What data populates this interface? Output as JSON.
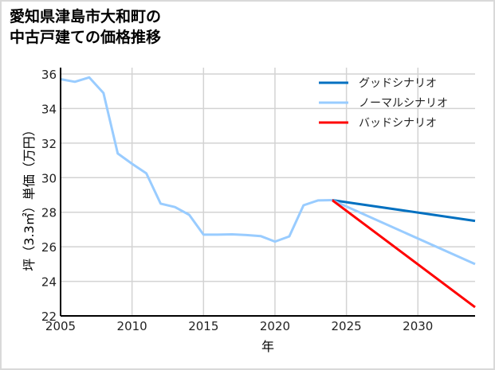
{
  "chart_data": {
    "type": "line",
    "title": [
      "愛知県津島市大和町の",
      "中古戸建ての価格推移"
    ],
    "xlabel": "年",
    "ylabel": "坪（3.3㎡）単価（万円）",
    "xlim": [
      2005,
      2034
    ],
    "ylim": [
      22,
      36
    ],
    "xticks": [
      2005,
      2010,
      2015,
      2020,
      2025,
      2030
    ],
    "yticks": [
      22,
      24,
      26,
      28,
      30,
      32,
      34,
      36
    ],
    "grid": true,
    "legend_position": "upper right",
    "series": [
      {
        "name": "ノーマルシナリオ",
        "color": "#99ccff",
        "role": "history",
        "x": [
          2005,
          2006,
          2007,
          2008,
          2009,
          2010,
          2011,
          2012,
          2013,
          2014,
          2015,
          2016,
          2017,
          2018,
          2019,
          2020,
          2021,
          2022,
          2023,
          2024
        ],
        "values": [
          35.7,
          35.55,
          35.8,
          34.9,
          31.4,
          30.8,
          30.25,
          28.5,
          28.3,
          27.85,
          26.7,
          26.7,
          26.72,
          26.68,
          26.62,
          26.3,
          26.6,
          28.4,
          28.68,
          28.7
        ]
      },
      {
        "name": "グッドシナリオ",
        "color": "#0070c0",
        "x": [
          2024,
          2034
        ],
        "values": [
          28.7,
          27.5
        ]
      },
      {
        "name": "ノーマルシナリオ",
        "color": "#99ccff",
        "x": [
          2024,
          2034
        ],
        "values": [
          28.7,
          25.0
        ]
      },
      {
        "name": "バッドシナリオ",
        "color": "#ff0000",
        "x": [
          2024,
          2034
        ],
        "values": [
          28.7,
          22.5
        ]
      }
    ],
    "legend": [
      {
        "label": "グッドシナリオ",
        "color": "#0070c0"
      },
      {
        "label": "ノーマルシナリオ",
        "color": "#99ccff"
      },
      {
        "label": "バッドシナリオ",
        "color": "#ff0000"
      }
    ]
  }
}
